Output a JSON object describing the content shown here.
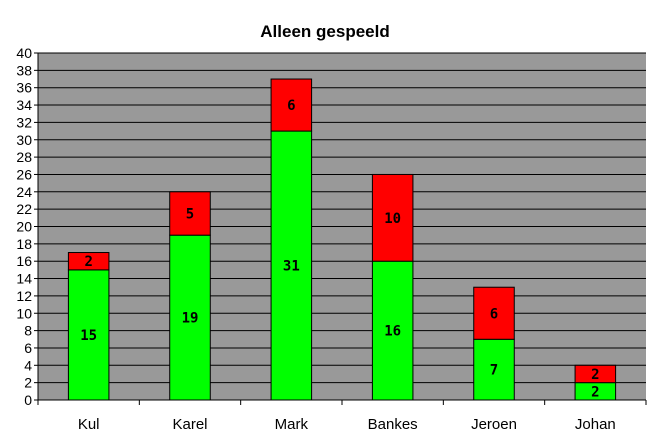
{
  "chart_data": {
    "type": "bar",
    "stacked": true,
    "title": "Alleen gespeeld",
    "xlabel": "",
    "ylabel": "",
    "categories": [
      "Kul",
      "Karel",
      "Mark",
      "Bankes",
      "Jeroen",
      "Johan"
    ],
    "series": [
      {
        "values": [
          15,
          19,
          31,
          16,
          7,
          2
        ],
        "color": "#00ff00"
      },
      {
        "values": [
          2,
          5,
          6,
          10,
          6,
          2
        ],
        "color": "#ff0000"
      }
    ],
    "ylim": [
      0,
      40
    ],
    "ytick_step": 2,
    "grid": true,
    "legend": "none",
    "plot_background": "#999999"
  }
}
